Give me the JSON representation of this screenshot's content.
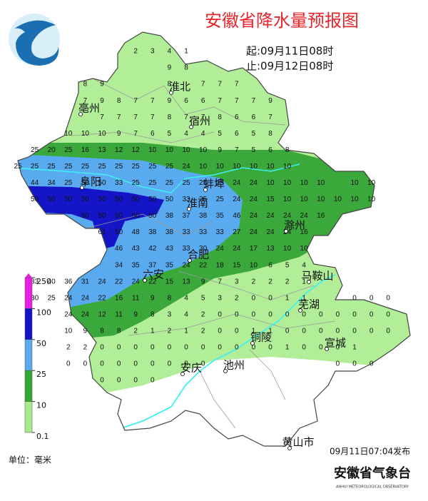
{
  "title": "安徽省降水量预报图",
  "period": {
    "start": "起:09月11日08时",
    "end": "止:09月12日08时"
  },
  "cities": [
    "亳州",
    "淮北",
    "宿州",
    "阜阳",
    "蚌埠",
    "淮南",
    "滁州",
    "六安",
    "合肥",
    "马鞍山",
    "芜湖",
    "铜陵",
    "宣城",
    "安庆",
    "池州",
    "黄山市"
  ],
  "legend": {
    "levels": [
      250,
      100,
      50,
      25,
      10,
      0.1
    ],
    "colors": [
      "#e61ee6",
      "#1212c8",
      "#5aaaf0",
      "#33a833",
      "#a8ea8c"
    ],
    "unit": "单位：毫米"
  },
  "issued": "09月11日07:04发布",
  "agency": {
    "name": "安徽省气象台",
    "english": "ANHUI METEOROLOGICAL OBSERVATORY"
  },
  "grid": {
    "rows": [
      [
        null,
        null,
        null,
        null,
        null,
        null,
        null,
        2,
        3,
        4,
        1
      ],
      [
        null,
        null,
        null,
        null,
        null,
        null,
        null,
        null,
        null,
        9,
        8
      ],
      [
        null,
        null,
        null,
        null,
        8,
        9,
        null,
        null,
        null,
        8,
        null,
        7,
        7,
        7
      ],
      [
        null,
        null,
        null,
        null,
        7,
        9,
        8,
        7,
        7,
        9,
        6,
        6,
        7,
        7,
        7,
        9
      ],
      [
        null,
        null,
        null,
        null,
        null,
        7,
        7,
        7,
        7,
        8,
        7,
        7,
        8,
        6,
        6,
        7
      ],
      [
        null,
        null,
        null,
        10,
        10,
        10,
        9,
        7,
        6,
        5,
        4,
        4,
        5,
        6,
        5,
        8
      ],
      [
        null,
        25,
        20,
        25,
        16,
        13,
        12,
        12,
        10,
        10,
        10,
        10,
        9,
        7,
        5,
        6,
        8
      ],
      [
        25,
        25,
        25,
        25,
        25,
        25,
        25,
        25,
        25,
        25,
        24,
        10,
        10,
        10,
        10,
        10,
        10
      ],
      [
        null,
        44,
        34,
        25,
        50,
        50,
        33,
        25,
        25,
        25,
        25,
        25,
        25,
        24,
        24,
        10,
        10,
        10,
        10,
        null,
        10,
        10
      ],
      [
        null,
        50,
        50,
        50,
        50,
        50,
        50,
        50,
        50,
        50,
        33,
        25,
        25,
        24,
        24,
        15,
        10,
        10,
        10,
        10,
        10,
        10
      ],
      [
        null,
        null,
        null,
        null,
        50,
        50,
        60,
        50,
        50,
        38,
        37,
        38,
        35,
        46,
        24,
        24,
        24,
        24,
        16
      ],
      [
        null,
        null,
        null,
        null,
        null,
        61,
        50,
        48,
        38,
        38,
        33,
        33,
        33,
        27,
        24,
        24,
        24,
        16
      ],
      [
        null,
        null,
        null,
        null,
        null,
        null,
        46,
        43,
        42,
        43,
        33,
        30,
        24,
        24,
        17,
        13,
        10,
        10
      ],
      [
        null,
        null,
        null,
        null,
        null,
        null,
        34,
        35,
        37,
        35,
        24,
        22,
        18,
        15,
        10,
        6,
        5,
        4
      ],
      [
        null,
        33,
        40,
        36,
        31,
        24,
        22,
        24,
        22,
        15,
        13,
        9,
        7,
        3,
        2,
        2,
        2,
        1
      ],
      [
        null,
        30,
        25,
        24,
        24,
        22,
        16,
        11,
        9,
        8,
        4,
        5,
        3,
        2,
        0,
        0,
        1,
        1,
        null,
        null,
        0,
        0,
        0
      ],
      [
        null,
        null,
        null,
        24,
        24,
        12,
        11,
        9,
        8,
        3,
        4,
        2,
        0,
        0,
        0,
        0,
        0,
        0,
        0,
        0,
        0,
        0,
        0
      ],
      [
        null,
        null,
        null,
        10,
        9,
        8,
        8,
        2,
        1,
        2,
        1,
        2,
        0,
        0,
        1,
        1,
        0,
        0,
        0,
        0,
        0,
        0,
        0
      ],
      [
        null,
        null,
        null,
        2,
        2,
        0,
        0,
        0,
        0,
        0,
        0,
        0,
        0,
        0,
        0,
        0,
        1,
        0,
        0,
        0,
        1
      ],
      [
        null,
        null,
        null,
        0,
        0,
        0,
        0,
        0,
        0,
        0,
        0,
        0,
        null,
        null,
        null,
        null,
        null,
        null,
        null,
        0,
        0,
        0
      ],
      [
        null,
        null,
        null,
        null,
        null,
        0,
        0,
        0,
        0
      ]
    ]
  }
}
